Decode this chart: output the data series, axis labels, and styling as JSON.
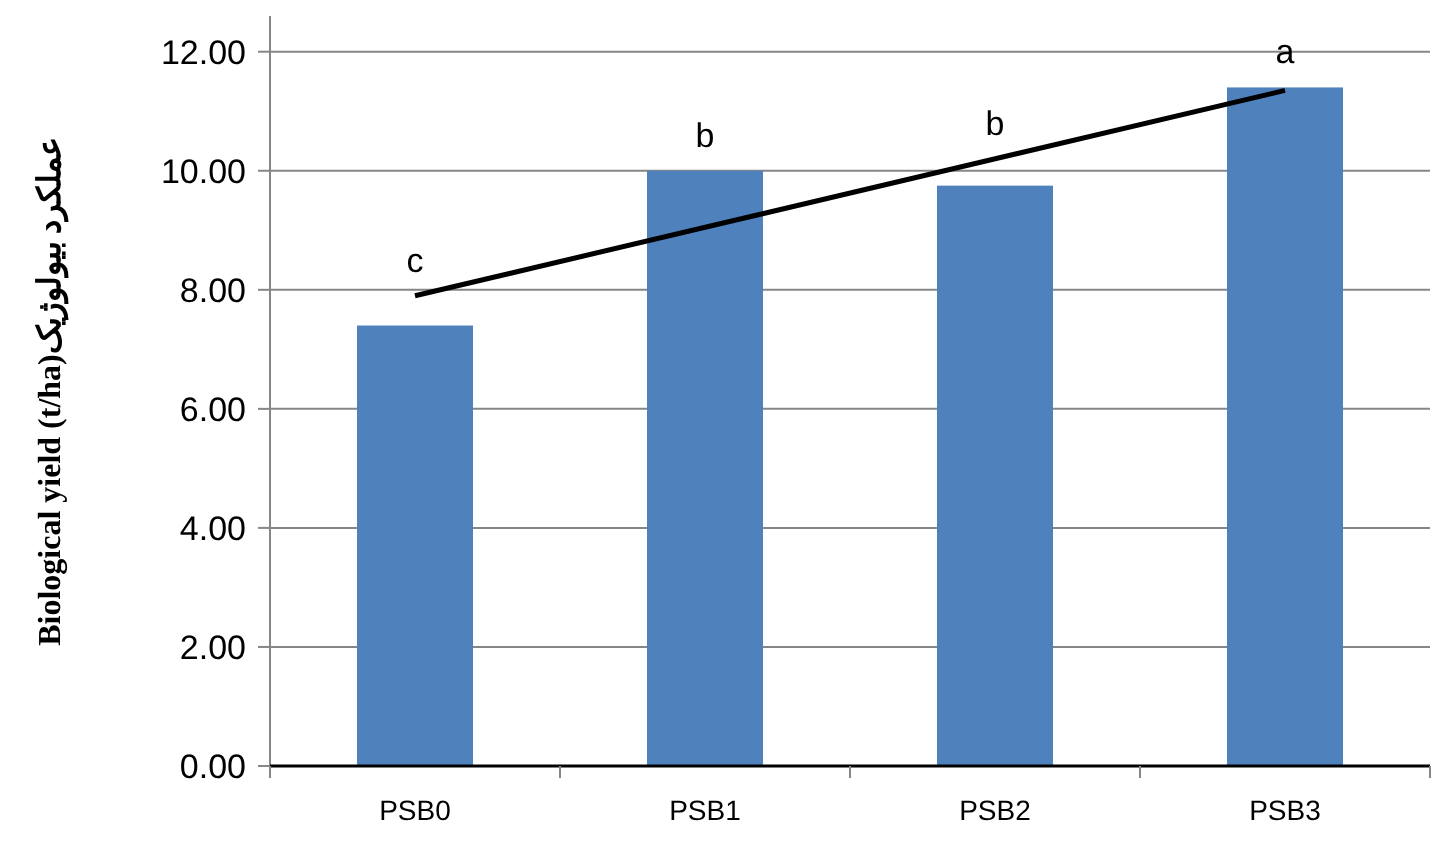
{
  "chart_data": {
    "type": "bar",
    "ylabel": "Biological yield (t/ha)عملکرد بیولوژیک",
    "categories": [
      "PSB0",
      "PSB1",
      "PSB2",
      "PSB3"
    ],
    "series": [
      {
        "color": "#4f81bd",
        "values": [
          7.4,
          10.0,
          9.75,
          11.4
        ]
      },
      {
        "type": "line",
        "color": "#000000",
        "x": [
          "PSB0",
          "PSB3"
        ],
        "values": [
          7.9,
          11.35
        ]
      }
    ],
    "ylim": [
      0,
      12.6
    ],
    "yticks": [
      {
        "value": 0,
        "label": "0.00"
      },
      {
        "value": 2,
        "label": "2.00"
      },
      {
        "value": 4,
        "label": "4.00"
      },
      {
        "value": 6,
        "label": "6.00"
      },
      {
        "value": 8,
        "label": "8.00"
      },
      {
        "value": 10,
        "label": "10.00"
      },
      {
        "value": 12,
        "label": "12.00"
      }
    ],
    "grid": "y",
    "marker": "none",
    "line_style": "solid",
    "annotations": [
      "c",
      "b",
      "b",
      "a"
    ]
  }
}
